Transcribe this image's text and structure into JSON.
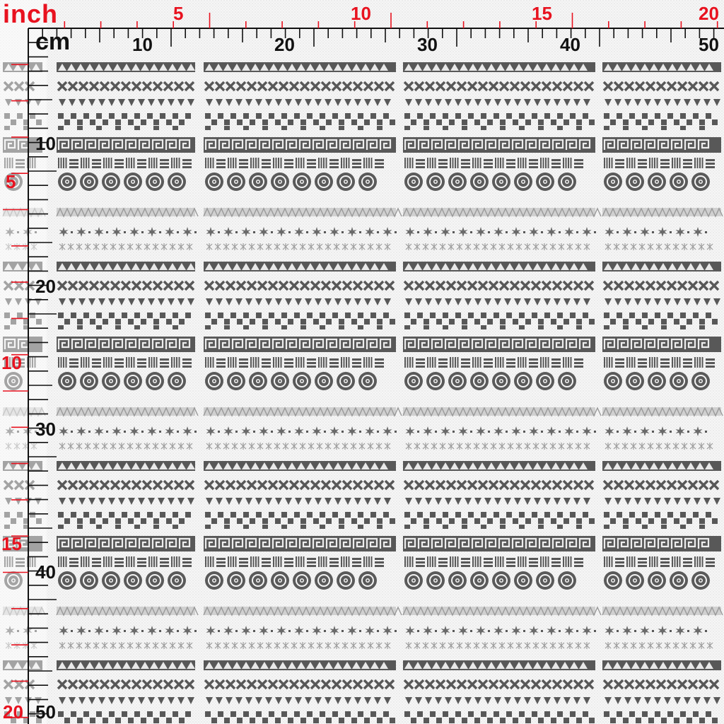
{
  "ruler": {
    "inch_unit": "inch",
    "cm_unit": "cm",
    "inch_top_labels": [
      "5",
      "10",
      "15",
      "20"
    ],
    "cm_top_labels": [
      "10",
      "20",
      "30",
      "40",
      "50"
    ],
    "inch_left_labels": [
      "5",
      "10",
      "15",
      "20"
    ],
    "cm_left_labels": [
      "10",
      "20",
      "30",
      "40",
      "50"
    ]
  },
  "colors": {
    "inch_accent": "#e8121f",
    "cm_ink": "#111111",
    "pattern_dark": "#585858",
    "pattern_light": "#bdbdbd",
    "fabric_background": "#f4f4f4"
  },
  "fabric": {
    "pattern_bands": [
      "dark-triangle-band",
      "x-chevron-band",
      "small-triangle-band",
      "checker-band",
      "greek-key-band",
      "dash-band",
      "medallion-circle-band",
      "light-zigzag-band",
      "snowflake-band",
      "asterisk-band"
    ]
  }
}
